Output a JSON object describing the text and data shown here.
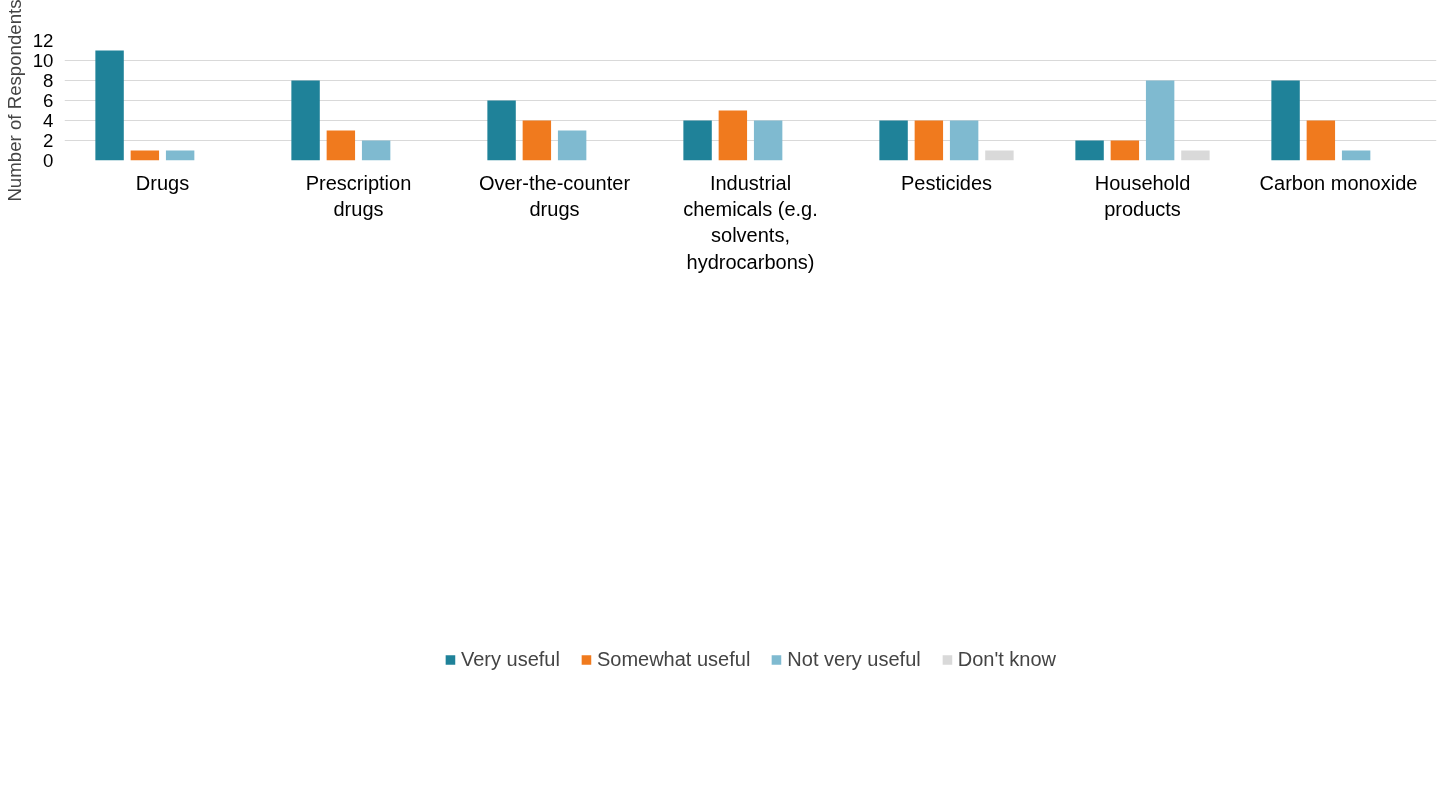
{
  "chart_data": {
    "type": "bar",
    "ylabel": "Number of Respondents",
    "categories": [
      "Drugs",
      "Prescription drugs",
      "Over-the-counter drugs",
      "Industrial chemicals (e.g. solvents, hydrocarbons)",
      "Pesticides",
      "Household products",
      "Carbon monoxide"
    ],
    "series": [
      {
        "name": "Very useful",
        "color": "#1f8299",
        "values": [
          11,
          8,
          6,
          4,
          4,
          2,
          8
        ]
      },
      {
        "name": "Somewhat useful",
        "color": "#f07a1e",
        "values": [
          1,
          3,
          4,
          5,
          4,
          2,
          4
        ]
      },
      {
        "name": "Not very useful",
        "color": "#7fbad0",
        "values": [
          1,
          2,
          3,
          4,
          4,
          8,
          1
        ]
      },
      {
        "name": "Don't know",
        "color": "#d9d9d9",
        "values": [
          0,
          0,
          0,
          0,
          1,
          1,
          0
        ]
      }
    ],
    "ylim": [
      0,
      12
    ],
    "yticks": [
      0,
      2,
      4,
      6,
      8,
      10,
      12
    ],
    "grid": "y",
    "legend": "bottom"
  }
}
